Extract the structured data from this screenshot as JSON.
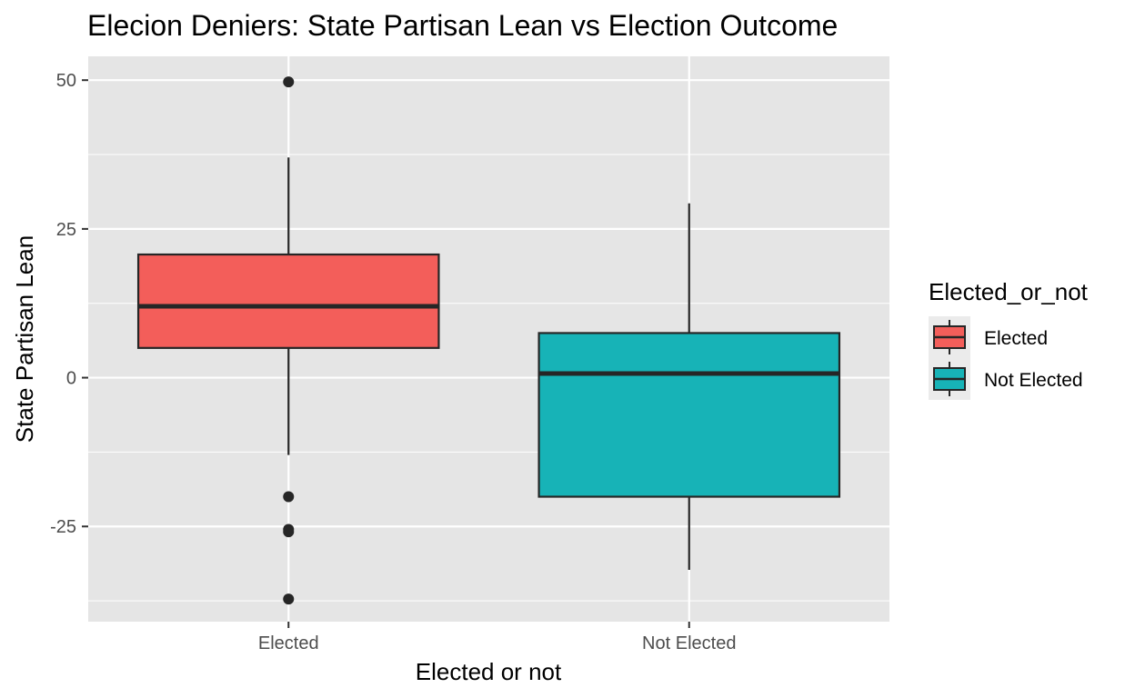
{
  "chart_data": {
    "type": "boxplot",
    "title": "Elecion Deniers: State Partisan Lean vs Election Outcome",
    "xlabel": "Elected or not",
    "ylabel": "State Partisan Lean",
    "categories": [
      "Elected",
      "Not Elected"
    ],
    "ylim": [
      -41,
      54
    ],
    "yticks": [
      -25,
      0,
      25,
      50
    ],
    "grid": true,
    "legend": {
      "title": "Elected_or_not",
      "position": "right",
      "entries": [
        "Elected",
        "Not Elected"
      ]
    },
    "colors": {
      "Elected": "#f35e5a",
      "Not Elected": "#17b3b7",
      "panel": "#e5e5e5",
      "grid": "#ffffff",
      "outline": "#262626"
    },
    "boxes": [
      {
        "category": "Elected",
        "whisker_low": -13,
        "q1": 5,
        "median": 12,
        "q3": 20.7,
        "whisker_high": 37,
        "outliers": [
          49.7,
          -20,
          -25.5,
          -25.9,
          -37.2
        ]
      },
      {
        "category": "Not Elected",
        "whisker_low": -32.3,
        "q1": -20,
        "median": 0.7,
        "q3": 7.5,
        "whisker_high": 29.3,
        "outliers": []
      }
    ]
  }
}
